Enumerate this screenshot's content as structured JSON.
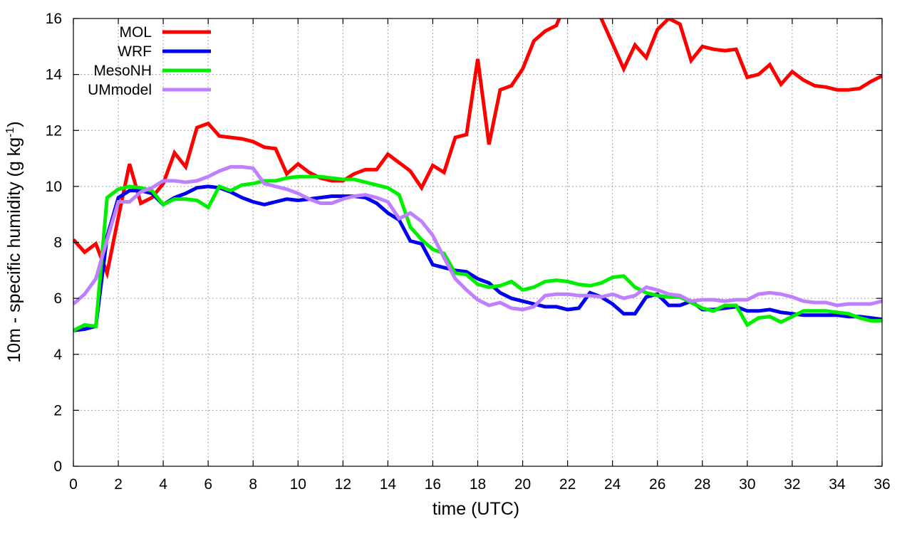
{
  "chart_data": {
    "type": "line",
    "xlabel": "time (UTC)",
    "ylabel": "10m - specific humidity (g kg",
    "ylabel_sup": "-1",
    "ylabel_tail": ")",
    "xlim": [
      0,
      36
    ],
    "ylim": [
      0,
      16
    ],
    "x_ticks": [
      0,
      2,
      4,
      6,
      8,
      10,
      12,
      14,
      16,
      18,
      20,
      22,
      24,
      26,
      28,
      30,
      32,
      34,
      36
    ],
    "y_ticks": [
      0,
      2,
      4,
      6,
      8,
      10,
      12,
      14,
      16
    ],
    "grid": true,
    "legend_position": "top-left",
    "series": [
      {
        "name": "MOL",
        "color": "#ff0000",
        "x": [
          0,
          0.5,
          1,
          1.5,
          2,
          2.5,
          3,
          3.5,
          4,
          4.5,
          5,
          5.5,
          6,
          6.5,
          7,
          7.5,
          8,
          8.5,
          9,
          9.5,
          10,
          10.5,
          11,
          11.5,
          12,
          12.5,
          13,
          13.5,
          14,
          14.5,
          15,
          15.5,
          16,
          16.5,
          17,
          17.5,
          18,
          18.5,
          19,
          19.5,
          20,
          20.5,
          21,
          21.5,
          22,
          22.5,
          23,
          23.5,
          24,
          24.5,
          25,
          25.5,
          26,
          26.5,
          27,
          27.5,
          28,
          28.5,
          29,
          29.5,
          30,
          30.5,
          31,
          31.5,
          32,
          32.5,
          33,
          33.5,
          34,
          34.5,
          35,
          35.5,
          36
        ],
        "values": [
          8.1,
          7.65,
          7.95,
          6.9,
          8.9,
          10.8,
          9.4,
          9.6,
          10.1,
          11.2,
          10.7,
          12.1,
          12.25,
          11.8,
          11.75,
          11.7,
          11.6,
          11.4,
          11.35,
          10.45,
          10.8,
          10.5,
          10.3,
          10.2,
          10.2,
          10.45,
          10.6,
          10.6,
          11.15,
          10.85,
          10.55,
          9.95,
          10.75,
          10.5,
          11.75,
          11.85,
          14.55,
          11.5,
          13.45,
          13.6,
          14.2,
          15.2,
          15.55,
          15.75,
          16.7,
          16.6,
          16.6,
          16.0,
          15.1,
          14.2,
          15.05,
          14.6,
          15.6,
          16.0,
          15.8,
          14.5,
          15.0,
          14.9,
          14.85,
          14.9,
          13.9,
          14.0,
          14.35,
          13.65,
          14.1,
          13.8,
          13.6,
          13.55,
          13.45,
          13.45,
          13.5,
          13.75,
          13.95
        ]
      },
      {
        "name": "WRF",
        "color": "#0000ee",
        "x": [
          0,
          0.5,
          1,
          1.5,
          2,
          2.5,
          3,
          3.5,
          4,
          4.5,
          5,
          5.5,
          6,
          6.5,
          7,
          7.5,
          8,
          8.5,
          9,
          9.5,
          10,
          10.5,
          11,
          11.5,
          12,
          12.5,
          13,
          13.5,
          14,
          14.5,
          15,
          15.5,
          16,
          16.5,
          17,
          17.5,
          18,
          18.5,
          19,
          19.5,
          20,
          20.5,
          21,
          21.5,
          22,
          22.5,
          23,
          23.5,
          24,
          24.5,
          25,
          25.5,
          26,
          26.5,
          27,
          27.5,
          28,
          28.5,
          29,
          29.5,
          30,
          30.5,
          31,
          31.5,
          32,
          32.5,
          33,
          33.5,
          34,
          34.5,
          35,
          35.5,
          36
        ],
        "values": [
          4.85,
          4.9,
          5.0,
          8.2,
          9.6,
          9.85,
          9.85,
          9.75,
          9.35,
          9.6,
          9.75,
          9.95,
          10.0,
          9.95,
          9.8,
          9.6,
          9.45,
          9.35,
          9.45,
          9.55,
          9.5,
          9.55,
          9.6,
          9.65,
          9.65,
          9.65,
          9.6,
          9.4,
          9.05,
          8.8,
          8.05,
          7.95,
          7.2,
          7.1,
          7.0,
          6.95,
          6.7,
          6.55,
          6.2,
          6.0,
          5.9,
          5.8,
          5.7,
          5.7,
          5.6,
          5.65,
          6.2,
          6.05,
          5.8,
          5.45,
          5.45,
          6.05,
          6.15,
          5.75,
          5.75,
          5.9,
          5.6,
          5.6,
          5.65,
          5.7,
          5.55,
          5.55,
          5.6,
          5.5,
          5.45,
          5.4,
          5.4,
          5.4,
          5.4,
          5.35,
          5.35,
          5.3,
          5.25
        ]
      },
      {
        "name": "MesoNH",
        "color": "#00ee00",
        "x": [
          0,
          0.5,
          1,
          1.5,
          2,
          2.5,
          3,
          3.5,
          4,
          4.5,
          5,
          5.5,
          6,
          6.5,
          7,
          7.5,
          8,
          8.5,
          9,
          9.5,
          10,
          10.5,
          11,
          11.5,
          12,
          12.5,
          13,
          13.5,
          14,
          14.5,
          15,
          15.5,
          16,
          16.5,
          17,
          17.5,
          18,
          18.5,
          19,
          19.5,
          20,
          20.5,
          21,
          21.5,
          22,
          22.5,
          23,
          23.5,
          24,
          24.5,
          25,
          25.5,
          26,
          26.5,
          27,
          27.5,
          28,
          28.5,
          29,
          29.5,
          30,
          30.5,
          31,
          31.5,
          32,
          32.5,
          33,
          33.5,
          34,
          34.5,
          35,
          35.5,
          36
        ],
        "values": [
          4.85,
          5.05,
          5.0,
          9.6,
          9.9,
          10.0,
          9.95,
          9.85,
          9.35,
          9.55,
          9.55,
          9.5,
          9.25,
          10.0,
          9.85,
          10.05,
          10.1,
          10.2,
          10.2,
          10.3,
          10.35,
          10.35,
          10.35,
          10.3,
          10.25,
          10.25,
          10.15,
          10.05,
          9.95,
          9.7,
          8.55,
          8.1,
          7.75,
          7.6,
          6.9,
          6.85,
          6.5,
          6.4,
          6.45,
          6.6,
          6.3,
          6.4,
          6.6,
          6.65,
          6.6,
          6.5,
          6.45,
          6.55,
          6.75,
          6.8,
          6.4,
          6.2,
          6.1,
          6.05,
          6.05,
          5.85,
          5.65,
          5.55,
          5.75,
          5.75,
          5.05,
          5.3,
          5.35,
          5.15,
          5.35,
          5.55,
          5.55,
          5.55,
          5.5,
          5.45,
          5.3,
          5.2,
          5.2
        ]
      },
      {
        "name": "UMmodel",
        "color": "#bf80ff",
        "x": [
          0,
          0.5,
          1,
          1.5,
          2,
          2.5,
          3,
          3.5,
          4,
          4.5,
          5,
          5.5,
          6,
          6.5,
          7,
          7.5,
          8,
          8.5,
          9,
          9.5,
          10,
          10.5,
          11,
          11.5,
          12,
          12.5,
          13,
          13.5,
          14,
          14.5,
          15,
          15.5,
          16,
          16.5,
          17,
          17.5,
          18,
          18.5,
          19,
          19.5,
          20,
          20.5,
          21,
          21.5,
          22,
          22.5,
          23,
          23.5,
          24,
          24.5,
          25,
          25.5,
          26,
          26.5,
          27,
          27.5,
          28,
          28.5,
          29,
          29.5,
          30,
          30.5,
          31,
          31.5,
          32,
          32.5,
          33,
          33.5,
          34,
          34.5,
          35,
          35.5,
          36
        ],
        "values": [
          5.8,
          6.15,
          6.7,
          8.1,
          9.45,
          9.45,
          9.8,
          9.95,
          10.2,
          10.2,
          10.15,
          10.2,
          10.35,
          10.55,
          10.7,
          10.7,
          10.65,
          10.1,
          10.0,
          9.9,
          9.75,
          9.55,
          9.4,
          9.4,
          9.55,
          9.65,
          9.7,
          9.6,
          9.45,
          8.85,
          9.05,
          8.75,
          8.25,
          7.45,
          6.7,
          6.3,
          5.95,
          5.75,
          5.85,
          5.65,
          5.6,
          5.7,
          6.1,
          6.15,
          6.15,
          6.1,
          6.1,
          6.05,
          6.15,
          6.0,
          6.1,
          6.4,
          6.3,
          6.15,
          6.1,
          5.9,
          5.95,
          5.95,
          5.9,
          5.95,
          5.95,
          6.15,
          6.2,
          6.15,
          6.05,
          5.9,
          5.85,
          5.85,
          5.75,
          5.8,
          5.8,
          5.8,
          5.9
        ]
      }
    ]
  }
}
